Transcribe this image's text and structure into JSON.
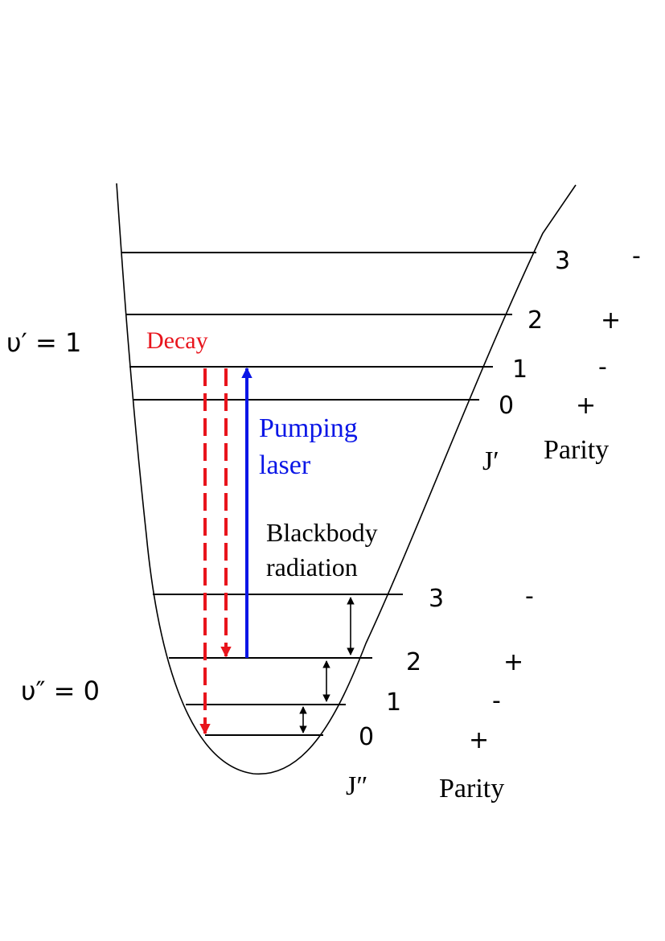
{
  "upper_state": {
    "label": "υ′ = 1",
    "levels": [
      {
        "j": "3",
        "parity": "-"
      },
      {
        "j": "2",
        "parity": "+"
      },
      {
        "j": "1",
        "parity": "-"
      },
      {
        "j": "0",
        "parity": "+"
      }
    ],
    "j_label": "J′",
    "parity_label": "Parity"
  },
  "lower_state": {
    "label": "υ″ = 0",
    "levels": [
      {
        "j": "3",
        "parity": "-"
      },
      {
        "j": "2",
        "parity": "+"
      },
      {
        "j": "1",
        "parity": "-"
      },
      {
        "j": "0",
        "parity": "+"
      }
    ],
    "j_label": "J″",
    "parity_label": "Parity"
  },
  "transitions": {
    "decay_label": "Decay",
    "pumping_label_1": "Pumping",
    "pumping_label_2": "laser",
    "blackbody_label_1": "Blackbody",
    "blackbody_label_2": "radiation"
  },
  "colors": {
    "decay": "#e8141c",
    "pumping": "#0a16e6",
    "line": "#000000"
  }
}
